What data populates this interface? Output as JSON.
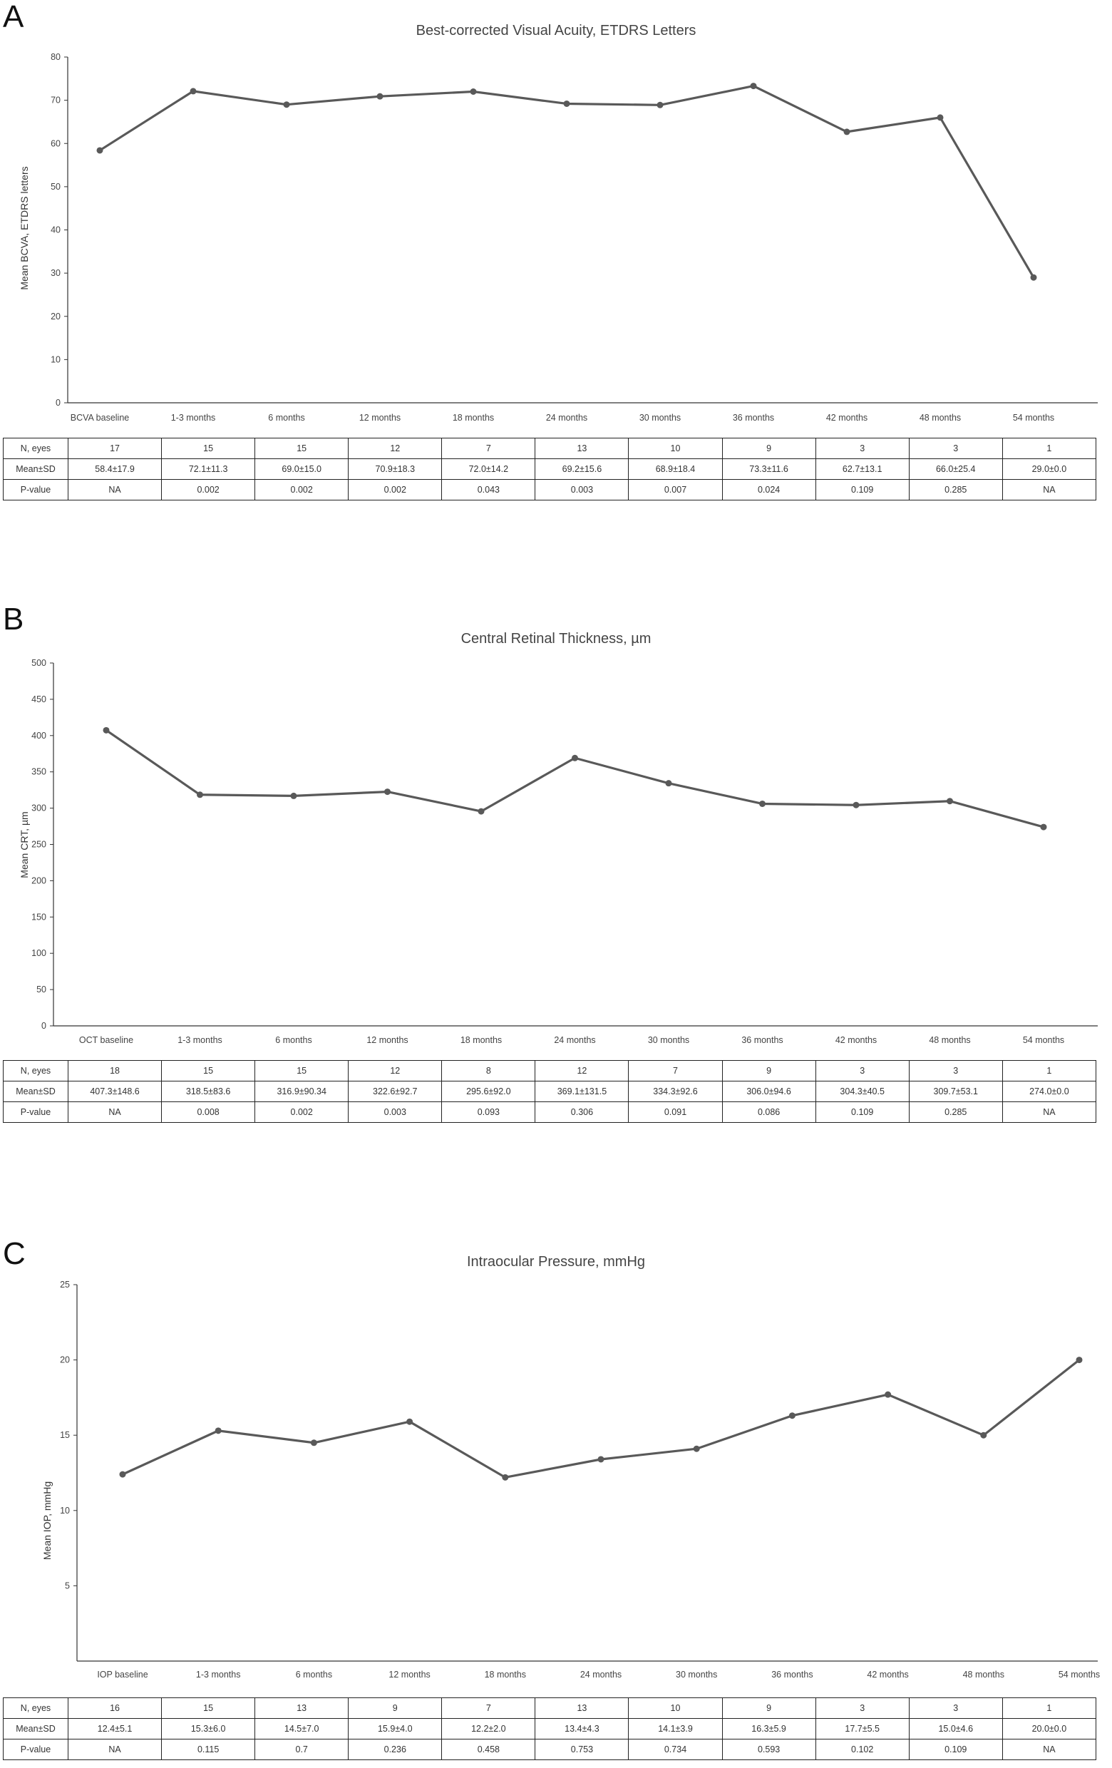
{
  "chart_data": [
    {
      "panel_letter": "A",
      "type": "line",
      "title": "Best-corrected Visual Acuity, ETDRS Letters",
      "ylabel": "Mean BCVA, ETDRS letters",
      "ylim": [
        0,
        80
      ],
      "yticks": [
        0,
        10,
        20,
        30,
        40,
        50,
        60,
        70,
        80
      ],
      "categories": [
        "BCVA baseline",
        "1-3 months",
        "6 months",
        "12 months",
        "18 months",
        "24 months",
        "30 months",
        "36 months",
        "42 months",
        "48 months",
        "54 months"
      ],
      "values": [
        58.4,
        72.1,
        69.0,
        70.9,
        72.0,
        69.2,
        68.9,
        73.3,
        62.7,
        66.0,
        29.0
      ],
      "grid": false,
      "line_color": "#595959",
      "table": {
        "rows": [
          {
            "label": "N, eyes",
            "cells": [
              "17",
              "15",
              "15",
              "12",
              "7",
              "13",
              "10",
              "9",
              "3",
              "3",
              "1"
            ]
          },
          {
            "label": "Mean±SD",
            "cells": [
              "58.4±17.9",
              "72.1±11.3",
              "69.0±15.0",
              "70.9±18.3",
              "72.0±14.2",
              "69.2±15.6",
              "68.9±18.4",
              "73.3±11.6",
              "62.7±13.1",
              "66.0±25.4",
              "29.0±0.0"
            ]
          },
          {
            "label": "P-value",
            "cells": [
              "NA",
              "0.002",
              "0.002",
              "0.002",
              "0.043",
              "0.003",
              "0.007",
              "0.024",
              "0.109",
              "0.285",
              "NA"
            ]
          }
        ]
      }
    },
    {
      "panel_letter": "B",
      "type": "line",
      "title": "Central Retinal Thickness, µm",
      "ylabel": "Mean CRT, µm",
      "ylim": [
        0,
        500
      ],
      "yticks": [
        0,
        50,
        100,
        150,
        200,
        250,
        300,
        350,
        400,
        450,
        500
      ],
      "categories": [
        "OCT baseline",
        "1-3 months",
        "6 months",
        "12 months",
        "18 months",
        "24 months",
        "30 months",
        "36 months",
        "42 months",
        "48 months",
        "54 months"
      ],
      "values": [
        407.3,
        318.5,
        316.9,
        322.6,
        295.6,
        369.1,
        334.3,
        306.0,
        304.3,
        309.7,
        274.0
      ],
      "grid": false,
      "line_color": "#595959",
      "table": {
        "rows": [
          {
            "label": "N, eyes",
            "cells": [
              "18",
              "15",
              "15",
              "12",
              "8",
              "12",
              "7",
              "9",
              "3",
              "3",
              "1"
            ]
          },
          {
            "label": "Mean±SD",
            "cells": [
              "407.3±148.6",
              "318.5±83.6",
              "316.9±90.34",
              "322.6±92.7",
              "295.6±92.0",
              "369.1±131.5",
              "334.3±92.6",
              "306.0±94.6",
              "304.3±40.5",
              "309.7±53.1",
              "274.0±0.0"
            ]
          },
          {
            "label": "P-value",
            "cells": [
              "NA",
              "0.008",
              "0.002",
              "0.003",
              "0.093",
              "0.306",
              "0.091",
              "0.086",
              "0.109",
              "0.285",
              "NA"
            ]
          }
        ]
      }
    },
    {
      "panel_letter": "C",
      "type": "line",
      "title": "Intraocular Pressure, mmHg",
      "ylabel": "Mean IOP, mmHg",
      "ylim": [
        0,
        25
      ],
      "yticks": [
        5,
        10,
        15,
        20,
        25
      ],
      "categories": [
        "IOP baseline",
        "1-3 months",
        "6 months",
        "12 months",
        "18 months",
        "24 months",
        "30 months",
        "36 months",
        "42 months",
        "48 months",
        "54 months"
      ],
      "values": [
        12.4,
        15.3,
        14.5,
        15.9,
        12.2,
        13.4,
        14.1,
        16.3,
        17.7,
        15.0,
        20.0
      ],
      "grid": false,
      "line_color": "#595959",
      "table": {
        "rows": [
          {
            "label": "N, eyes",
            "cells": [
              "16",
              "15",
              "13",
              "9",
              "7",
              "13",
              "10",
              "9",
              "3",
              "3",
              "1"
            ]
          },
          {
            "label": "Mean±SD",
            "cells": [
              "12.4±5.1",
              "15.3±6.0",
              "14.5±7.0",
              "15.9±4.0",
              "12.2±2.0",
              "13.4±4.3",
              "14.1±3.9",
              "16.3±5.9",
              "17.7±5.5",
              "15.0±4.6",
              "20.0±0.0"
            ]
          },
          {
            "label": "P-value",
            "cells": [
              "NA",
              "0.115",
              "0.7",
              "0.236",
              "0.458",
              "0.753",
              "0.734",
              "0.593",
              "0.102",
              "0.109",
              "NA"
            ]
          }
        ]
      }
    }
  ]
}
